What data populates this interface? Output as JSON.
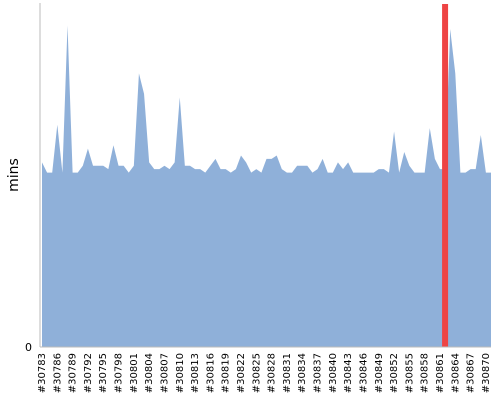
{
  "chart_data": {
    "type": "area",
    "ylabel": "mins",
    "y_tick_labels": [
      "0"
    ],
    "ylim": [
      0,
      100
    ],
    "x": [
      30783,
      30784,
      30785,
      30786,
      30787,
      30788,
      30789,
      30790,
      30791,
      30792,
      30793,
      30794,
      30795,
      30796,
      30797,
      30798,
      30799,
      30800,
      30801,
      30802,
      30803,
      30804,
      30805,
      30806,
      30807,
      30808,
      30809,
      30810,
      30811,
      30812,
      30813,
      30814,
      30815,
      30816,
      30817,
      30818,
      30819,
      30820,
      30821,
      30822,
      30823,
      30824,
      30825,
      30826,
      30827,
      30828,
      30829,
      30830,
      30831,
      30832,
      30833,
      30834,
      30835,
      30836,
      30837,
      30838,
      30839,
      30840,
      30841,
      30842,
      30843,
      30844,
      30845,
      30846,
      30847,
      30848,
      30849,
      30850,
      30851,
      30852,
      30853,
      30854,
      30855,
      30856,
      30857,
      30858,
      30859,
      30860,
      30861,
      30862,
      30863,
      30864,
      30865,
      30866,
      30867,
      30868,
      30869,
      30870,
      30871
    ],
    "x_tick_labels": [
      "#30783",
      "#30786",
      "#30789",
      "#30792",
      "#30795",
      "#30798",
      "#30801",
      "#30804",
      "#30807",
      "#30810",
      "#30813",
      "#30816",
      "#30819",
      "#30822",
      "#30825",
      "#30828",
      "#30831",
      "#30834",
      "#30837",
      "#30840",
      "#30843",
      "#30846",
      "#30849",
      "#30852",
      "#30855",
      "#30858",
      "#30861",
      "#30864",
      "#30867",
      "#30870"
    ],
    "x_tick_values": [
      30783,
      30786,
      30789,
      30792,
      30795,
      30798,
      30801,
      30804,
      30807,
      30810,
      30813,
      30816,
      30819,
      30822,
      30825,
      30828,
      30831,
      30834,
      30837,
      30840,
      30843,
      30846,
      30849,
      30852,
      30855,
      30858,
      30861,
      30864,
      30867,
      30870
    ],
    "values": [
      54,
      51,
      51,
      65,
      51,
      94,
      51,
      51,
      53,
      58,
      53,
      53,
      53,
      52,
      59,
      53,
      53,
      51,
      53,
      80,
      74,
      54,
      52,
      52,
      53,
      52,
      54,
      73,
      53,
      53,
      52,
      52,
      51,
      53,
      55,
      52,
      52,
      51,
      52,
      56,
      54,
      51,
      52,
      51,
      55,
      55,
      56,
      52,
      51,
      51,
      53,
      53,
      53,
      51,
      52,
      55,
      51,
      51,
      54,
      52,
      54,
      51,
      51,
      51,
      51,
      51,
      52,
      52,
      51,
      63,
      51,
      57,
      53,
      51,
      51,
      51,
      64,
      55,
      52,
      52,
      93,
      80,
      51,
      51,
      52,
      52,
      62,
      51,
      51
    ],
    "highlight_x": 30862,
    "colors": {
      "area_fill": "#8fb0d9",
      "highlight": "#ee4444",
      "axis": "#bbbbbb"
    }
  }
}
